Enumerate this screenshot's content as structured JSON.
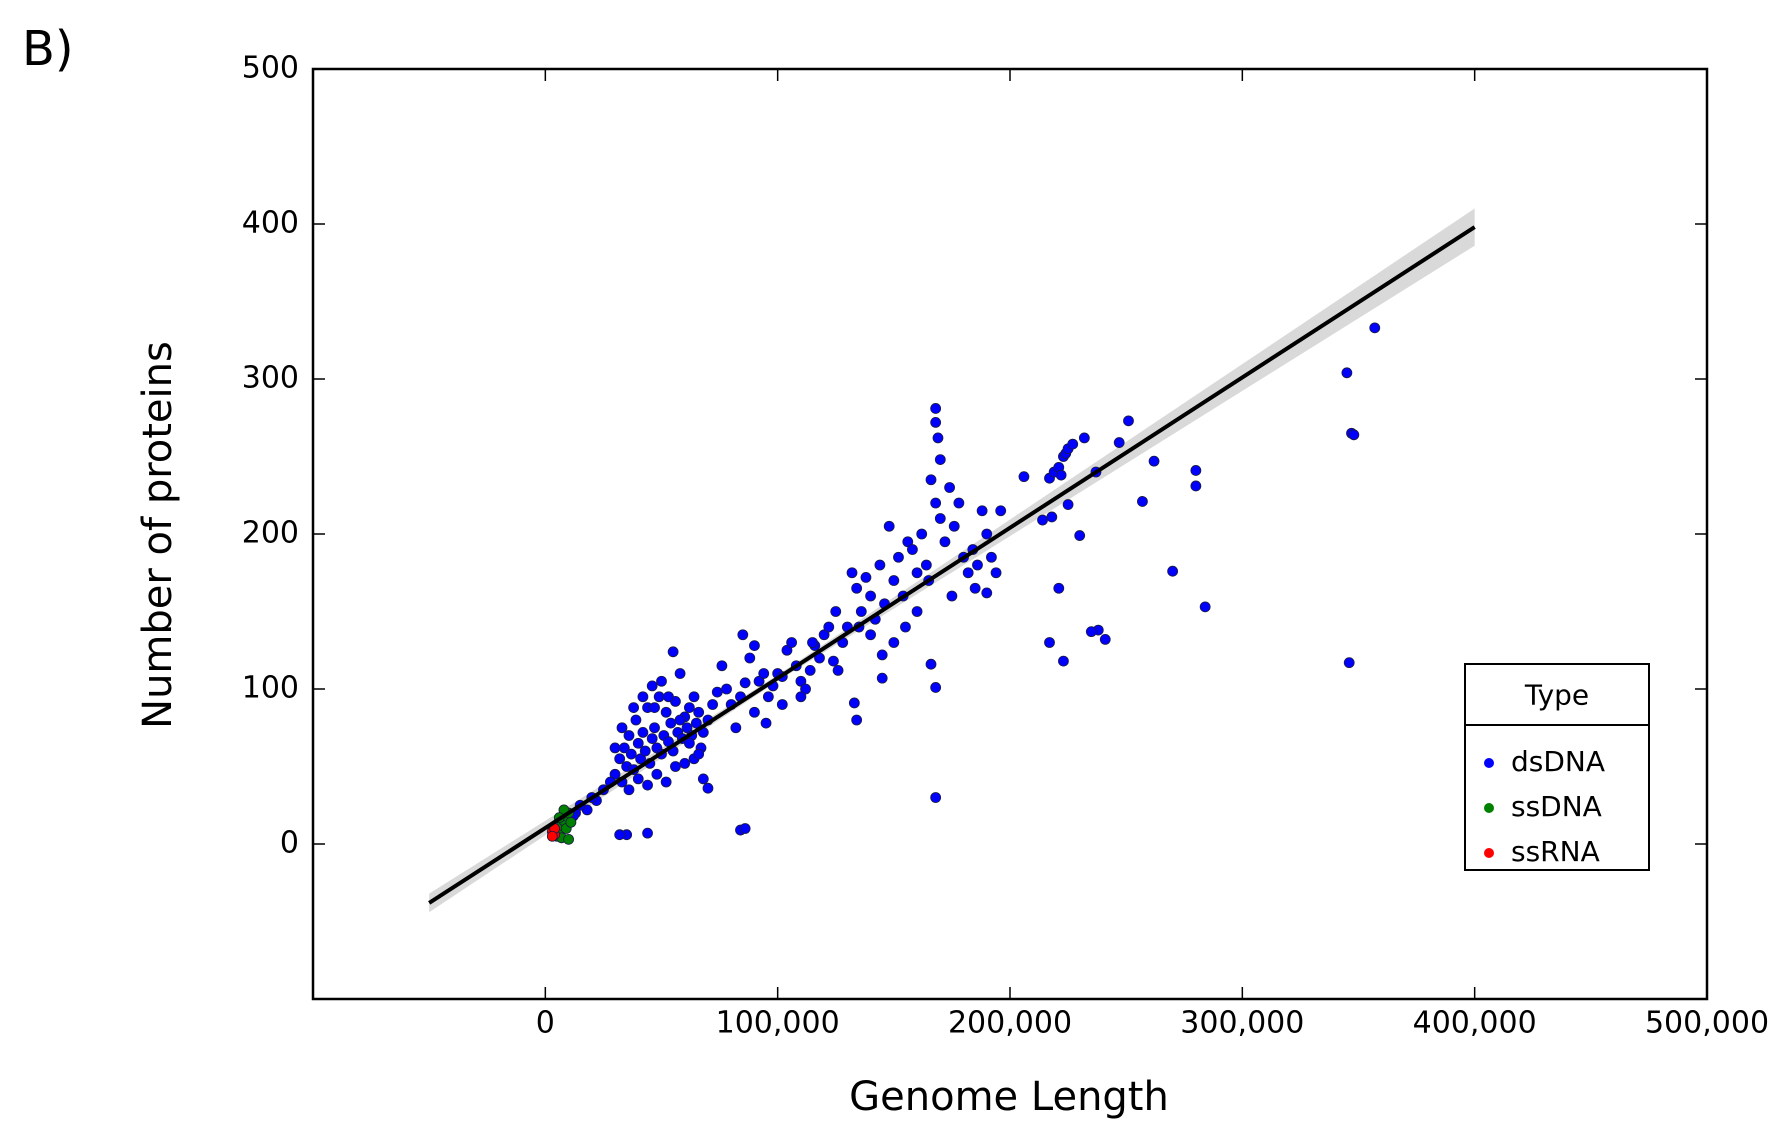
{
  "chart_data": {
    "type": "scatter",
    "panel_label": "B)",
    "x_label": "Genome Length",
    "y_label": "Number of proteins",
    "xlim": [
      -100000,
      500000
    ],
    "ylim": [
      -100,
      500
    ],
    "xticks": [
      0,
      {
        "value": 100000,
        "label": "100,000"
      },
      {
        "value": 200000,
        "label": "200,000"
      },
      {
        "value": 300000,
        "label": "300,000"
      },
      {
        "value": 400000,
        "label": "400,000"
      },
      {
        "value": 500000,
        "label": "500,000"
      }
    ],
    "yticks": [
      0,
      100,
      200,
      300,
      400,
      500
    ],
    "legend_title": "Type",
    "legend_position": "right",
    "series": [
      {
        "name": "dsDNA",
        "color": "#0000ff",
        "x": [
          30000,
          32000,
          33000,
          34000,
          35000,
          36000,
          37000,
          38000,
          39000,
          40000,
          41000,
          42000,
          43000,
          44000,
          45000,
          46000,
          47000,
          48000,
          49000,
          50000,
          51000,
          52000,
          53000,
          54000,
          55000,
          56000,
          57000,
          58000,
          59000,
          60000,
          61000,
          62000,
          63000,
          64000,
          65000,
          66000,
          67000,
          68000,
          70000,
          72000,
          74000,
          76000,
          36000,
          40000,
          44000,
          48000,
          52000,
          56000,
          60000,
          64000,
          68000,
          70000,
          42000,
          46000,
          50000,
          38000,
          55000,
          30000,
          28000,
          25000,
          22000,
          20000,
          18000,
          15000,
          13000,
          12000,
          33000,
          47000,
          53000,
          58000,
          62000,
          66000,
          78000,
          80000,
          82000,
          84000,
          86000,
          88000,
          90000,
          92000,
          94000,
          96000,
          98000,
          100000,
          102000,
          104000,
          106000,
          108000,
          110000,
          112000,
          114000,
          116000,
          118000,
          120000,
          122000,
          124000,
          126000,
          128000,
          85000,
          90000,
          95000,
          102000,
          110000,
          115000,
          125000,
          130000,
          132000,
          134000,
          136000,
          138000,
          140000,
          142000,
          144000,
          146000,
          148000,
          150000,
          152000,
          154000,
          156000,
          158000,
          160000,
          162000,
          164000,
          166000,
          168000,
          170000,
          172000,
          174000,
          176000,
          178000,
          180000,
          182000,
          184000,
          186000,
          188000,
          190000,
          192000,
          194000,
          196000,
          168000,
          168000,
          169000,
          170000,
          165000,
          160000,
          155000,
          150000,
          175000,
          185000,
          190000,
          145000,
          140000,
          135000,
          217000,
          219000,
          221000,
          222000,
          223000,
          224000,
          225000,
          227000,
          232000,
          237000,
          35000,
          32000,
          44000,
          84000,
          86000,
          168000,
          168000,
          166000,
          145000,
          134000,
          133000,
          206000,
          357000,
          345000,
          347000,
          348000,
          346000,
          284000,
          270000,
          280000,
          280000,
          262000,
          257000,
          251000,
          247000,
          241000,
          238000,
          235000,
          223000,
          217000,
          221000,
          230000,
          225000,
          218000,
          214000
        ],
        "values": [
          45,
          55,
          40,
          62,
          50,
          70,
          58,
          48,
          80,
          65,
          55,
          72,
          60,
          88,
          52,
          68,
          75,
          62,
          95,
          58,
          70,
          85,
          66,
          78,
          60,
          92,
          72,
          110,
          68,
          82,
          75,
          88,
          70,
          95,
          78,
          85,
          62,
          72,
          80,
          90,
          98,
          115,
          35,
          42,
          38,
          45,
          40,
          50,
          52,
          55,
          42,
          36,
          95,
          102,
          105,
          88,
          124,
          62,
          40,
          35,
          28,
          30,
          22,
          25,
          20,
          18,
          75,
          88,
          95,
          80,
          65,
          58,
          100,
          90,
          75,
          95,
          104,
          120,
          128,
          105,
          110,
          95,
          102,
          110,
          108,
          125,
          130,
          115,
          105,
          100,
          112,
          128,
          120,
          135,
          140,
          118,
          112,
          130,
          135,
          85,
          78,
          90,
          95,
          130,
          150,
          140,
          175,
          165,
          150,
          172,
          160,
          145,
          180,
          155,
          205,
          170,
          185,
          160,
          195,
          190,
          175,
          200,
          180,
          235,
          220,
          210,
          195,
          230,
          205,
          220,
          185,
          175,
          190,
          180,
          215,
          200,
          185,
          175,
          215,
          281,
          272,
          262,
          248,
          170,
          150,
          140,
          130,
          160,
          165,
          162,
          122,
          135,
          140,
          236,
          240,
          243,
          238,
          250,
          252,
          255,
          258,
          262,
          240,
          6,
          6,
          7,
          9,
          10,
          30,
          101,
          116,
          107,
          80,
          91,
          237,
          333,
          304,
          265,
          264,
          117,
          153,
          176,
          241,
          231,
          247,
          221,
          273,
          259,
          132,
          138,
          137,
          118,
          130,
          165,
          199,
          219,
          211,
          209
        ]
      },
      {
        "name": "ssDNA",
        "color": "#008000",
        "x": [
          5000,
          6000,
          7000,
          8000,
          9000,
          10000,
          8000,
          9000,
          7000,
          10000,
          6000,
          11000
        ],
        "values": [
          5,
          8,
          12,
          15,
          18,
          20,
          22,
          10,
          4,
          3,
          17,
          14
        ]
      },
      {
        "name": "ssRNA",
        "color": "#ff0000",
        "x": [
          3000,
          4000,
          4000,
          3000
        ],
        "values": [
          8,
          6,
          10,
          5
        ]
      }
    ],
    "fit": {
      "color": "#000000",
      "band_color": "#d9d9d9",
      "x": [
        -50000,
        100000,
        400000
      ],
      "values": [
        -38,
        107,
        398
      ],
      "lower": [
        -44,
        105,
        386
      ],
      "upper": [
        -32,
        109,
        410
      ]
    }
  }
}
